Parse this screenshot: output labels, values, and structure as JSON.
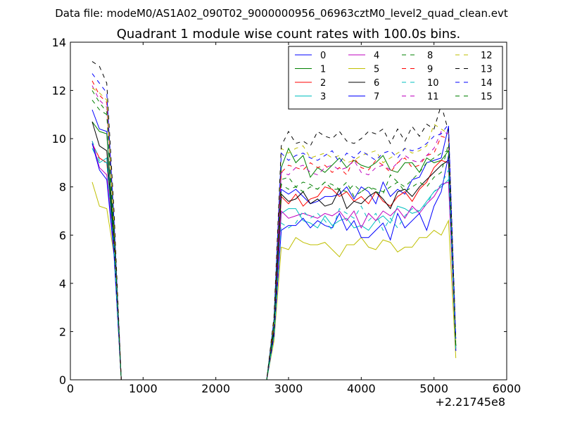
{
  "chart_data": {
    "type": "line",
    "suptitle": "Data file: modeM0/AS1A02_090T02_9000000956_06963cztM0_level2_quad_clean.evt",
    "title": "Quadrant 1 module wise count rates with 100.0s bins.",
    "xlabel": "",
    "ylabel": "",
    "x_offset_label": "+2.21745e8",
    "xlim": [
      0,
      6000
    ],
    "ylim": [
      0,
      14
    ],
    "xticks": [
      "0",
      "1000",
      "2000",
      "3000",
      "4000",
      "5000",
      "6000"
    ],
    "yticks": [
      "0",
      "2",
      "4",
      "6",
      "8",
      "10",
      "12",
      "14"
    ],
    "grid": false,
    "legend_position": "top-right",
    "legend_columns": 4,
    "x": [
      300,
      400,
      500,
      600,
      700,
      800,
      900,
      1000,
      1100,
      1200,
      1300,
      1400,
      1500,
      1600,
      1700,
      1800,
      1900,
      2000,
      2100,
      2200,
      2300,
      2400,
      2500,
      2600,
      2700,
      2800,
      2900,
      3000,
      3100,
      3200,
      3300,
      3400,
      3500,
      3600,
      3700,
      3800,
      3900,
      4000,
      4100,
      4200,
      4300,
      4400,
      4500,
      4600,
      4700,
      4800,
      4900,
      5000,
      5100,
      5200,
      5300
    ],
    "series": [
      {
        "name": "0",
        "color": "#0000ff",
        "dash": "solid",
        "values": [
          11.2,
          10.4,
          10.3,
          5.8,
          0,
          0,
          0,
          0,
          0,
          0,
          0,
          0,
          0,
          0,
          0,
          0,
          0,
          0,
          0,
          0,
          0,
          0,
          0,
          0,
          0,
          2.0,
          7.9,
          7.7,
          7.9,
          7.6,
          7.3,
          7.4,
          7.6,
          7.6,
          7.7,
          8.0,
          7.5,
          8.0,
          7.8,
          7.3,
          8.2,
          7.6,
          7.9,
          7.7,
          8.3,
          8.4,
          9.0,
          9.1,
          9.2,
          10.5,
          1.3
        ]
      },
      {
        "name": "1",
        "color": "#008000",
        "dash": "solid",
        "values": [
          10.7,
          10.3,
          10.2,
          6.0,
          0,
          0,
          0,
          0,
          0,
          0,
          0,
          0,
          0,
          0,
          0,
          0,
          0,
          0,
          0,
          0,
          0,
          0,
          0,
          0,
          0,
          2.2,
          8.8,
          9.6,
          9.0,
          9.3,
          8.4,
          8.8,
          8.6,
          8.9,
          9.2,
          8.8,
          9.1,
          8.9,
          8.8,
          9.0,
          9.3,
          8.7,
          8.6,
          9.0,
          9.0,
          8.6,
          9.2,
          9.0,
          9.1,
          9.5,
          1.4
        ]
      },
      {
        "name": "2",
        "color": "#ff0000",
        "dash": "solid",
        "values": [
          9.8,
          9.2,
          9.0,
          5.6,
          0,
          0,
          0,
          0,
          0,
          0,
          0,
          0,
          0,
          0,
          0,
          0,
          0,
          0,
          0,
          0,
          0,
          0,
          0,
          0,
          0,
          2.1,
          7.6,
          7.3,
          7.7,
          7.2,
          7.5,
          7.6,
          8.0,
          7.9,
          7.6,
          7.8,
          7.4,
          7.6,
          7.3,
          7.8,
          7.4,
          7.2,
          7.6,
          7.8,
          7.4,
          7.9,
          8.2,
          8.8,
          9.1,
          9.0,
          1.3
        ]
      },
      {
        "name": "3",
        "color": "#00bfbf",
        "dash": "solid",
        "values": [
          9.6,
          9.0,
          9.2,
          5.5,
          0,
          0,
          0,
          0,
          0,
          0,
          0,
          0,
          0,
          0,
          0,
          0,
          0,
          0,
          0,
          0,
          0,
          0,
          0,
          0,
          0,
          1.9,
          6.9,
          7.1,
          7.1,
          6.6,
          6.5,
          6.3,
          6.8,
          6.4,
          6.6,
          6.7,
          6.3,
          6.4,
          6.2,
          6.6,
          6.8,
          6.5,
          7.2,
          7.1,
          6.9,
          7.0,
          7.4,
          7.8,
          8.0,
          8.3,
          1.2
        ]
      },
      {
        "name": "4",
        "color": "#bf00bf",
        "dash": "solid",
        "values": [
          9.9,
          8.8,
          8.5,
          5.4,
          0,
          0,
          0,
          0,
          0,
          0,
          0,
          0,
          0,
          0,
          0,
          0,
          0,
          0,
          0,
          0,
          0,
          0,
          0,
          0,
          0,
          1.9,
          7.0,
          6.7,
          6.8,
          6.9,
          6.8,
          6.7,
          6.9,
          6.8,
          7.0,
          6.6,
          7.0,
          6.3,
          6.9,
          6.6,
          7.0,
          6.8,
          7.1,
          6.7,
          7.2,
          6.9,
          7.3,
          7.6,
          8.1,
          8.2,
          1.2
        ]
      },
      {
        "name": "5",
        "color": "#bfbf00",
        "dash": "solid",
        "values": [
          8.2,
          7.2,
          7.1,
          5.2,
          0,
          0,
          0,
          0,
          0,
          0,
          0,
          0,
          0,
          0,
          0,
          0,
          0,
          0,
          0,
          0,
          0,
          0,
          0,
          0,
          0,
          1.6,
          5.5,
          5.4,
          5.9,
          5.7,
          5.6,
          5.6,
          5.7,
          5.4,
          5.1,
          5.6,
          5.6,
          5.9,
          5.5,
          5.4,
          5.8,
          5.7,
          5.3,
          5.5,
          5.5,
          5.9,
          5.9,
          6.2,
          6.0,
          6.6,
          0.9
        ]
      },
      {
        "name": "6",
        "color": "#000000",
        "dash": "solid",
        "values": [
          10.7,
          9.7,
          9.5,
          5.7,
          0,
          0,
          0,
          0,
          0,
          0,
          0,
          0,
          0,
          0,
          0,
          0,
          0,
          0,
          0,
          0,
          0,
          0,
          0,
          0,
          0,
          2.0,
          7.7,
          7.4,
          7.5,
          7.8,
          7.3,
          7.5,
          7.2,
          7.3,
          7.9,
          7.1,
          7.4,
          7.3,
          7.6,
          7.8,
          7.5,
          7.1,
          7.8,
          7.9,
          7.6,
          8.0,
          8.3,
          8.6,
          8.9,
          9.1,
          1.4
        ]
      },
      {
        "name": "7",
        "color": "#0000ff",
        "dash": "solid",
        "values": [
          9.8,
          8.7,
          8.3,
          5.2,
          0,
          0,
          0,
          0,
          0,
          0,
          0,
          0,
          0,
          0,
          0,
          0,
          0,
          0,
          0,
          0,
          0,
          0,
          0,
          0,
          0,
          1.8,
          6.2,
          6.4,
          6.4,
          6.7,
          6.3,
          6.6,
          6.4,
          6.3,
          6.9,
          6.2,
          6.6,
          5.9,
          5.9,
          6.2,
          6.5,
          5.8,
          6.9,
          6.3,
          6.6,
          6.9,
          6.2,
          7.2,
          7.8,
          9.3,
          1.2
        ]
      },
      {
        "name": "8",
        "color": "#008000",
        "dash": "dashed",
        "values": [
          12.0,
          11.5,
          11.1,
          6.4,
          0,
          0,
          0,
          0,
          0,
          0,
          0,
          0,
          0,
          0,
          0,
          0,
          0,
          0,
          0,
          0,
          0,
          0,
          0,
          0,
          0,
          2.2,
          8.3,
          8.4,
          8.0,
          8.2,
          8.1,
          7.9,
          8.2,
          8.1,
          7.9,
          8.2,
          7.6,
          7.8,
          8.0,
          7.9,
          7.8,
          8.0,
          8.2,
          7.8,
          8.0,
          8.2,
          8.0,
          8.4,
          8.6,
          9.8,
          1.5
        ]
      },
      {
        "name": "9",
        "color": "#ff0000",
        "dash": "dashed",
        "values": [
          12.4,
          11.8,
          11.5,
          6.6,
          0,
          0,
          0,
          0,
          0,
          0,
          0,
          0,
          0,
          0,
          0,
          0,
          0,
          0,
          0,
          0,
          0,
          0,
          0,
          0,
          0,
          2.4,
          8.6,
          8.9,
          8.8,
          8.7,
          9.0,
          8.8,
          8.9,
          8.6,
          8.8,
          8.5,
          9.2,
          8.8,
          8.7,
          9.1,
          8.9,
          8.6,
          9.0,
          9.2,
          8.8,
          8.9,
          9.3,
          9.4,
          10.1,
          10.0,
          1.6
        ]
      },
      {
        "name": "10",
        "color": "#00bfbf",
        "dash": "dashed",
        "values": [
          9.9,
          9.1,
          9.0,
          5.5,
          0,
          0,
          0,
          0,
          0,
          0,
          0,
          0,
          0,
          0,
          0,
          0,
          0,
          0,
          0,
          0,
          0,
          0,
          0,
          0,
          0,
          1.8,
          6.5,
          6.3,
          6.5,
          7.0,
          6.7,
          6.9,
          6.6,
          6.2,
          7.1,
          6.9,
          6.7,
          7.2,
          6.6,
          6.9,
          6.2,
          6.7,
          6.3,
          6.8,
          7.1,
          7.0,
          7.3,
          7.8,
          8.1,
          8.7,
          1.2
        ]
      },
      {
        "name": "11",
        "color": "#bf00bf",
        "dash": "dashed",
        "values": [
          12.2,
          11.6,
          11.3,
          6.5,
          0,
          0,
          0,
          0,
          0,
          0,
          0,
          0,
          0,
          0,
          0,
          0,
          0,
          0,
          0,
          0,
          0,
          0,
          0,
          0,
          0,
          2.4,
          8.6,
          8.5,
          8.8,
          8.9,
          8.6,
          8.5,
          8.8,
          8.9,
          8.7,
          8.8,
          9.1,
          8.6,
          8.5,
          8.8,
          8.9,
          8.7,
          9.0,
          9.3,
          9.1,
          9.0,
          9.3,
          9.6,
          10.3,
          10.2,
          1.6
        ]
      },
      {
        "name": "12",
        "color": "#bfbf00",
        "dash": "dashed",
        "values": [
          12.1,
          11.9,
          11.6,
          6.4,
          0,
          0,
          0,
          0,
          0,
          0,
          0,
          0,
          0,
          0,
          0,
          0,
          0,
          0,
          0,
          0,
          0,
          0,
          0,
          0,
          0,
          2.4,
          9.6,
          9.4,
          9.6,
          9.7,
          9.2,
          9.3,
          9.4,
          9.2,
          9.3,
          9.0,
          9.1,
          9.3,
          9.4,
          9.5,
          9.0,
          9.2,
          9.4,
          9.6,
          9.4,
          9.5,
          9.7,
          10.6,
          10.4,
          10.2,
          1.6
        ]
      },
      {
        "name": "13",
        "color": "#000000",
        "dash": "dashed",
        "values": [
          13.2,
          13.0,
          12.3,
          7.0,
          0,
          0,
          0,
          0,
          0,
          0,
          0,
          0,
          0,
          0,
          0,
          0,
          0,
          0,
          0,
          0,
          0,
          0,
          0,
          0,
          0,
          2.6,
          9.7,
          10.3,
          9.8,
          9.9,
          9.7,
          10.3,
          10.1,
          10.0,
          10.3,
          9.9,
          9.8,
          10.0,
          10.3,
          10.2,
          10.4,
          9.8,
          10.4,
          9.9,
          10.5,
          10.1,
          10.6,
          10.4,
          11.4,
          10.3,
          1.7
        ]
      },
      {
        "name": "14",
        "color": "#0000ff",
        "dash": "dashed",
        "values": [
          12.7,
          12.3,
          11.9,
          6.6,
          0,
          0,
          0,
          0,
          0,
          0,
          0,
          0,
          0,
          0,
          0,
          0,
          0,
          0,
          0,
          0,
          0,
          0,
          0,
          0,
          0,
          2.5,
          9.4,
          9.1,
          9.3,
          9.4,
          9.2,
          9.1,
          9.3,
          9.5,
          9.0,
          9.4,
          9.2,
          9.5,
          9.3,
          9.1,
          9.4,
          9.5,
          9.2,
          9.6,
          9.5,
          9.6,
          9.8,
          10.1,
          10.2,
          10.6,
          1.7
        ]
      },
      {
        "name": "15",
        "color": "#008000",
        "dash": "dashed",
        "values": [
          11.6,
          11.2,
          11.0,
          6.2,
          0,
          0,
          0,
          0,
          0,
          0,
          0,
          0,
          0,
          0,
          0,
          0,
          0,
          0,
          0,
          0,
          0,
          0,
          0,
          0,
          0,
          2.3,
          8.1,
          7.9,
          8.0,
          7.8,
          8.0,
          7.9,
          8.2,
          7.9,
          7.9,
          7.8,
          8.1,
          7.8,
          8.0,
          7.8,
          7.7,
          8.5,
          8.2,
          8.0,
          8.3,
          8.6,
          9.0,
          9.2,
          9.4,
          9.5,
          1.4
        ]
      }
    ]
  }
}
